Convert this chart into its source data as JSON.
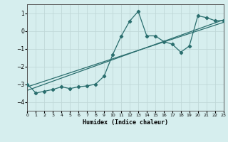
{
  "xlabel": "Humidex (Indice chaleur)",
  "xlim": [
    0,
    23
  ],
  "ylim": [
    -4.5,
    1.5
  ],
  "yticks": [
    -4,
    -3,
    -2,
    -1,
    0,
    1
  ],
  "xticks": [
    0,
    1,
    2,
    3,
    4,
    5,
    6,
    7,
    8,
    9,
    10,
    11,
    12,
    13,
    14,
    15,
    16,
    17,
    18,
    19,
    20,
    21,
    22,
    23
  ],
  "bg_color": "#d6eeee",
  "grid_color": "#c0d8d8",
  "line_color": "#2a6e6e",
  "main_x": [
    0,
    1,
    2,
    3,
    4,
    5,
    6,
    7,
    8,
    9,
    10,
    11,
    12,
    13,
    14,
    15,
    16,
    17,
    18,
    19,
    20,
    21,
    22,
    23
  ],
  "main_y": [
    -3.0,
    -3.5,
    -3.4,
    -3.3,
    -3.15,
    -3.25,
    -3.15,
    -3.1,
    -3.0,
    -2.55,
    -1.35,
    -0.3,
    0.55,
    1.1,
    -0.28,
    -0.28,
    -0.6,
    -0.75,
    -1.2,
    -0.85,
    0.85,
    0.75,
    0.58,
    0.58
  ],
  "trend1_x": [
    0,
    23
  ],
  "trend1_y": [
    -3.35,
    0.62
  ],
  "trend2_x": [
    0,
    23
  ],
  "trend2_y": [
    -3.15,
    0.48
  ]
}
